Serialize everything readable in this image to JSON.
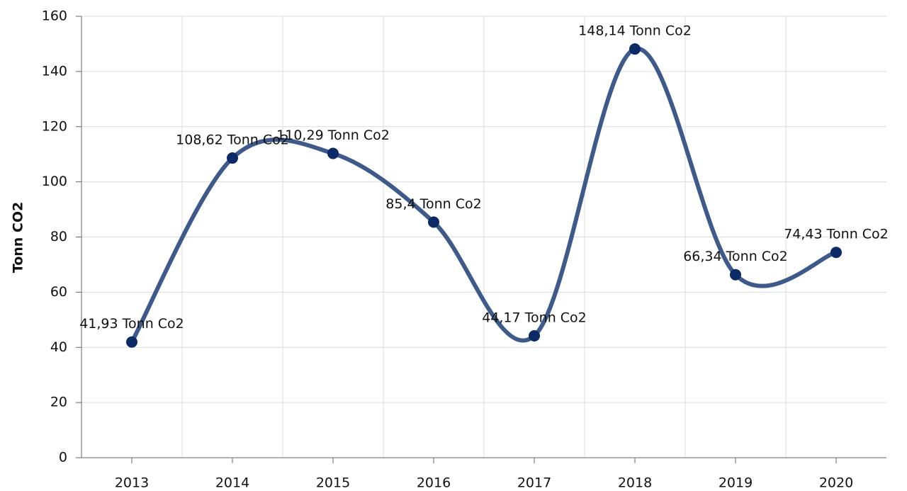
{
  "chart_data": {
    "type": "line",
    "y_label": "Tonn CO2",
    "categories": [
      "2013",
      "2014",
      "2015",
      "2016",
      "2017",
      "2018",
      "2019",
      "2020"
    ],
    "series": [
      {
        "name": "Tonn Co2",
        "color": "#3d5a8a",
        "marker_color": "#0c2b66",
        "values": [
          41.93,
          108.62,
          110.29,
          85.4,
          44.17,
          148.14,
          66.34,
          74.43
        ],
        "value_labels": [
          "41,93 Tonn Co2",
          "108,62 Tonn Co2",
          "110,29 Tonn Co2",
          "85,4 Tonn Co2",
          "44,17 Tonn Co2",
          "148,14 Tonn Co2",
          "66,34 Tonn Co2",
          "74,43 Tonn Co2"
        ]
      }
    ],
    "ylim": [
      0,
      160
    ],
    "yticks": [
      0,
      20,
      40,
      60,
      80,
      100,
      120,
      140,
      160
    ],
    "grid": true
  }
}
